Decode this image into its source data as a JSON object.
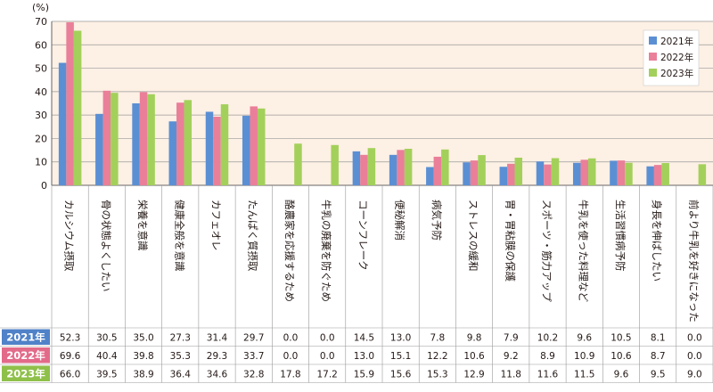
{
  "chart_data": {
    "type": "bar",
    "y_unit": "(%)",
    "ylim": [
      0,
      70
    ],
    "yticks": [
      0,
      10,
      20,
      30,
      40,
      50,
      60,
      70
    ],
    "grid": true,
    "legend_position": "top-right",
    "categories": [
      "カルシウム摂取",
      "骨の状態よくしたい",
      "栄養を意識",
      "健康全般を意識",
      "カフェオレ",
      "たんぱく質摂取",
      "酪農家を応援するため",
      "牛乳の廃棄を防ぐため",
      "コーンフレーク",
      "便秘解消",
      "病気予防",
      "ストレスの緩和",
      "胃・胃粘膜の保護",
      "スポーツ・筋力アップ",
      "牛乳を使った料理など",
      "生活習慣病予防",
      "身長を伸ばしたい",
      "前より牛乳を好きになった"
    ],
    "series": [
      {
        "name": "2021年",
        "color": "#5b8fd4",
        "values": [
          52.3,
          30.5,
          35.0,
          27.3,
          31.4,
          29.7,
          0.0,
          0.0,
          14.5,
          13.0,
          7.8,
          9.8,
          7.9,
          10.2,
          9.6,
          10.5,
          8.1,
          0.0
        ]
      },
      {
        "name": "2022年",
        "color": "#ea7f9a",
        "values": [
          69.6,
          40.4,
          39.8,
          35.3,
          29.3,
          33.7,
          0.0,
          0.0,
          13.0,
          15.1,
          12.2,
          10.6,
          9.2,
          8.9,
          10.9,
          10.6,
          8.7,
          0.0
        ]
      },
      {
        "name": "2023年",
        "color": "#a3d05a",
        "values": [
          66.0,
          39.5,
          38.9,
          36.4,
          34.6,
          32.8,
          17.8,
          17.2,
          15.9,
          15.6,
          15.3,
          12.9,
          11.8,
          11.6,
          11.5,
          9.6,
          9.5,
          9.0
        ]
      }
    ]
  },
  "colors": {
    "plot_background": "#fdf0e4",
    "row_label_bg": [
      "#4f82c8",
      "#e36b8a",
      "#8fc04a"
    ]
  }
}
